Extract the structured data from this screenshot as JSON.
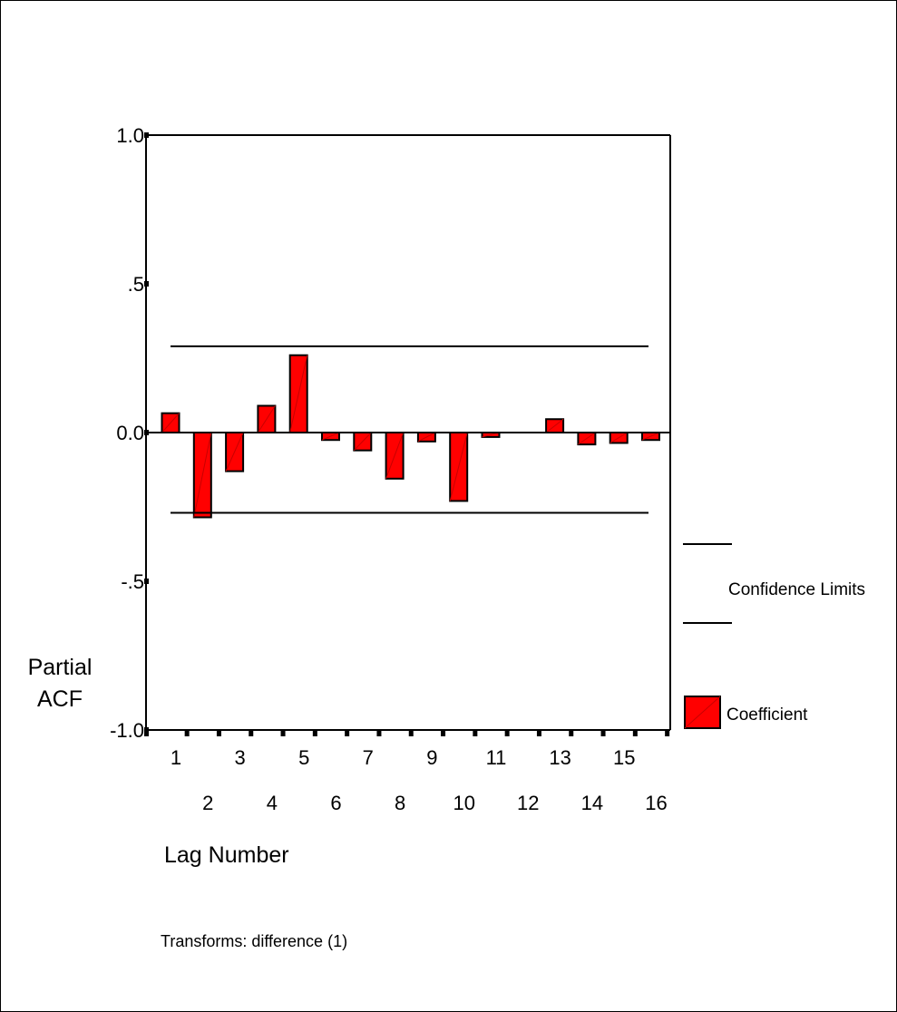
{
  "chart_data": {
    "type": "bar",
    "categories": [
      "1",
      "2",
      "3",
      "4",
      "5",
      "6",
      "7",
      "8",
      "9",
      "10",
      "11",
      "12",
      "13",
      "14",
      "15",
      "16"
    ],
    "series": [
      {
        "name": "Coefficient",
        "values": [
          0.065,
          -0.285,
          -0.13,
          0.09,
          0.26,
          -0.025,
          -0.06,
          -0.155,
          -0.03,
          -0.23,
          -0.015,
          0.0,
          0.045,
          -0.04,
          -0.035,
          -0.025
        ]
      }
    ],
    "confidence_limits": {
      "upper": 0.29,
      "lower": -0.27
    },
    "ylim": [
      -1.0,
      1.0
    ],
    "yticks": [
      1.0,
      0.5,
      0.0,
      -0.5,
      -1.0
    ],
    "ytick_labels": [
      "1.0",
      ".5",
      "0.0",
      "-.5",
      "-1.0"
    ],
    "ylabel": [
      "Partial",
      "ACF"
    ],
    "xlabel": "Lag Number",
    "legend": {
      "position": "right",
      "confidence_label": "Confidence Limits",
      "coefficient_label": "Coefficient"
    },
    "footnote": "Transforms: difference (1)",
    "colors": {
      "bar_fill": "#ff0000",
      "bar_stroke": "#000000",
      "line": "#000000"
    }
  }
}
